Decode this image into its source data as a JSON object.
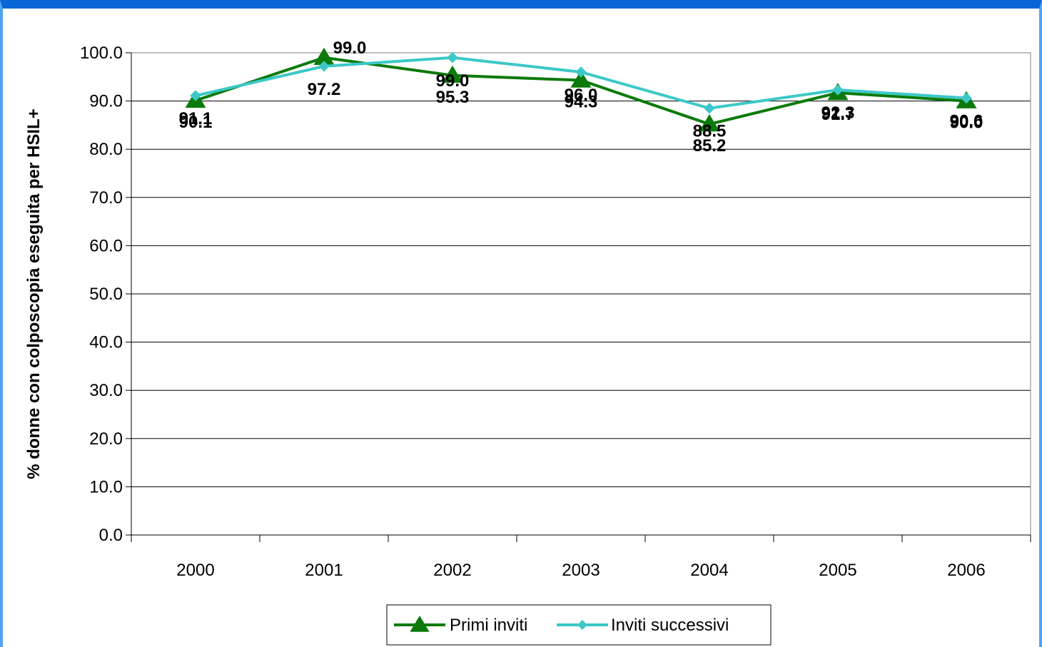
{
  "chart_data": {
    "type": "line",
    "title": "",
    "xlabel": "",
    "ylabel": "% donne con colposcopia eseguita per HSIL+",
    "categories": [
      "2000",
      "2001",
      "2002",
      "2003",
      "2004",
      "2005",
      "2006"
    ],
    "ylim": [
      0,
      100
    ],
    "yticks": [
      "0.0",
      "10.0",
      "20.0",
      "30.0",
      "40.0",
      "50.0",
      "60.0",
      "70.0",
      "80.0",
      "90.0",
      "100.0"
    ],
    "grid": true,
    "legend_position": "bottom",
    "series": [
      {
        "name": "Primi inviti",
        "color": "#0b7a0b",
        "marker": "triangle",
        "values": [
          90.1,
          99.0,
          95.3,
          94.3,
          85.2,
          91.7,
          90.0
        ],
        "labels": [
          "90.1",
          "99.0",
          "95.3",
          "94.3",
          "85.2",
          "91.7",
          "90.0"
        ]
      },
      {
        "name": "Inviti successivi",
        "color": "#3cc8c8",
        "marker": "diamond",
        "values": [
          91.1,
          97.2,
          99.0,
          96.0,
          88.5,
          92.3,
          90.6
        ],
        "labels": [
          "91.1",
          "97.2",
          "99.0",
          "96.0",
          "88.5",
          "92.3",
          "90.6"
        ]
      }
    ]
  }
}
